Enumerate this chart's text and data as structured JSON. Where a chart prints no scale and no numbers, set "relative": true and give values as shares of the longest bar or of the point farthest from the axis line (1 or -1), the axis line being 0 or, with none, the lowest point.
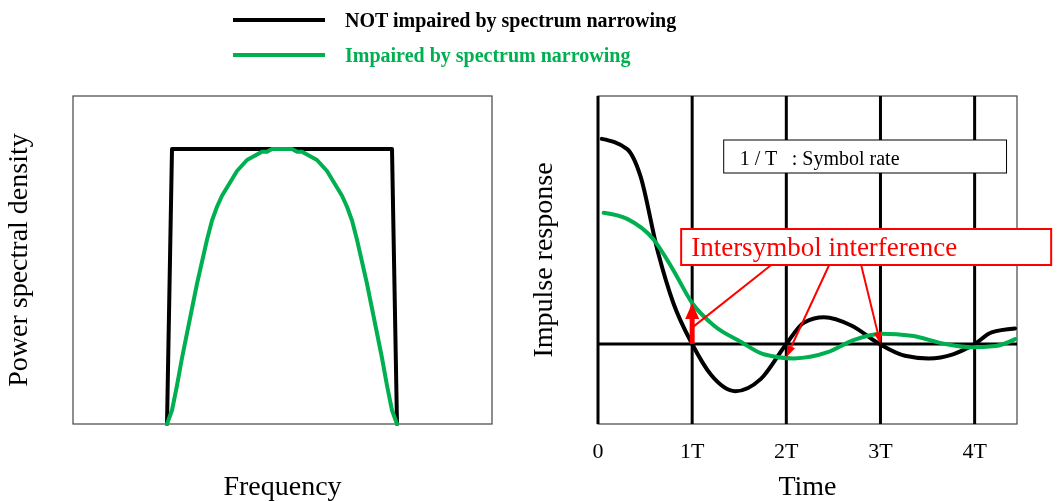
{
  "chart_data": [
    {
      "type": "line",
      "xlabel": "Frequency",
      "ylabel": "Power spectral density",
      "relative": true,
      "legend": "top",
      "categories": [
        null,
        null,
        null,
        null,
        null,
        null,
        null,
        null,
        null,
        null,
        null,
        null,
        null,
        null,
        null,
        null,
        null,
        null,
        null,
        null,
        null,
        null,
        null,
        null,
        null,
        null,
        null,
        null,
        null,
        null,
        null,
        null,
        null,
        null,
        null,
        null,
        null,
        null,
        null,
        null,
        null,
        null,
        null,
        null,
        null,
        null,
        null,
        null,
        null,
        null,
        null,
        null,
        null,
        null,
        null,
        null,
        null,
        null,
        null,
        null,
        null,
        null,
        null,
        null,
        null,
        null,
        null,
        null,
        null,
        null,
        null,
        null,
        null,
        null,
        null,
        null,
        null,
        null,
        null,
        null,
        null,
        null,
        null
      ],
      "series": [
        {
          "name": "NOT impaired by spectrum narrowing",
          "color": "#000000",
          "values": [
            null,
            null,
            null,
            null,
            null,
            null,
            null,
            null,
            null,
            null,
            null,
            null,
            null,
            null,
            null,
            null,
            null,
            null,
            0,
            1,
            1,
            1,
            1,
            1,
            1,
            1,
            1,
            1,
            1,
            1,
            1,
            1,
            1,
            1,
            1,
            1,
            1,
            1,
            1,
            1,
            1,
            1,
            1,
            1,
            1,
            1,
            1,
            1,
            1,
            1,
            1,
            1,
            1,
            1,
            1,
            1,
            1,
            1,
            1,
            1,
            1,
            1,
            1,
            1,
            0,
            null,
            null,
            null,
            null,
            null,
            null,
            null,
            null,
            null,
            null,
            null,
            null,
            null,
            null,
            null,
            null,
            null,
            null
          ]
        },
        {
          "name": "Impaired by spectrum narrowing",
          "color": "#00b050",
          "values": [
            null,
            null,
            null,
            null,
            null,
            null,
            null,
            null,
            null,
            null,
            null,
            null,
            null,
            null,
            null,
            null,
            null,
            null,
            0,
            0.05,
            0.14,
            0.24,
            0.33,
            0.42,
            0.51,
            0.59,
            0.67,
            0.74,
            0.79,
            0.83,
            0.86,
            0.89,
            0.92,
            0.94,
            0.96,
            0.97,
            0.98,
            0.99,
            0.99,
            1,
            1,
            1,
            1,
            1,
            0.99,
            0.99,
            0.98,
            0.97,
            0.96,
            0.94,
            0.92,
            0.89,
            0.86,
            0.83,
            0.79,
            0.74,
            0.67,
            0.59,
            0.51,
            0.42,
            0.33,
            0.24,
            0.14,
            0.05,
            0,
            null,
            null,
            null,
            null,
            null,
            null,
            null,
            null,
            null,
            null,
            null,
            null,
            null,
            null,
            null,
            null,
            null,
            null
          ]
        }
      ]
    },
    {
      "type": "line",
      "xlabel": "Time",
      "ylabel": "Impulse response",
      "relative": true,
      "grid": "x",
      "tick_labels": "x",
      "xlim": [
        0,
        4.45
      ],
      "xticks": [
        0,
        {
          "value": 1,
          "label": "1T"
        },
        {
          "value": 2,
          "label": "2T"
        },
        {
          "value": 3,
          "label": "3T"
        },
        {
          "value": 4,
          "label": "4T"
        }
      ],
      "ref_lines": [
        {
          "axis": "y",
          "value": 0,
          "color": "#000000"
        }
      ],
      "annotations": [
        "1 / T   : Symbol rate",
        {
          "text": "Intersymbol interference",
          "x": 1,
          "y": 0.2
        }
      ],
      "series": [
        {
          "color": "#000000",
          "x": [
            0.04,
            0.31,
            0.45,
            0.63,
            0.8,
            1,
            1.2,
            1.46,
            1.73,
            2,
            2.19,
            2.4,
            2.69,
            2.99,
            3.26,
            3.51,
            3.77,
            4,
            4.18,
            4.43
          ],
          "values": [
            1,
            0.95,
            0.82,
            0.46,
            0.2,
            0,
            -0.15,
            -0.23,
            -0.17,
            0,
            0.105,
            0.13,
            0.09,
            0,
            -0.057,
            -0.07,
            -0.05,
            0,
            0.057,
            0.076
          ]
        },
        {
          "color": "#00b050",
          "x": [
            0.06,
            0.31,
            0.59,
            0.8,
            1,
            1.23,
            1.52,
            1.76,
            2.08,
            2.44,
            2.72,
            3.01,
            3.33,
            3.69,
            3.97,
            4.22,
            4.43
          ],
          "values": [
            0.64,
            0.61,
            0.51,
            0.36,
            0.2,
            0.09,
            0.01,
            -0.05,
            -0.07,
            -0.04,
            0.02,
            0.05,
            0.04,
            0,
            -0.016,
            -0.01,
            0.024
          ]
        }
      ]
    }
  ]
}
